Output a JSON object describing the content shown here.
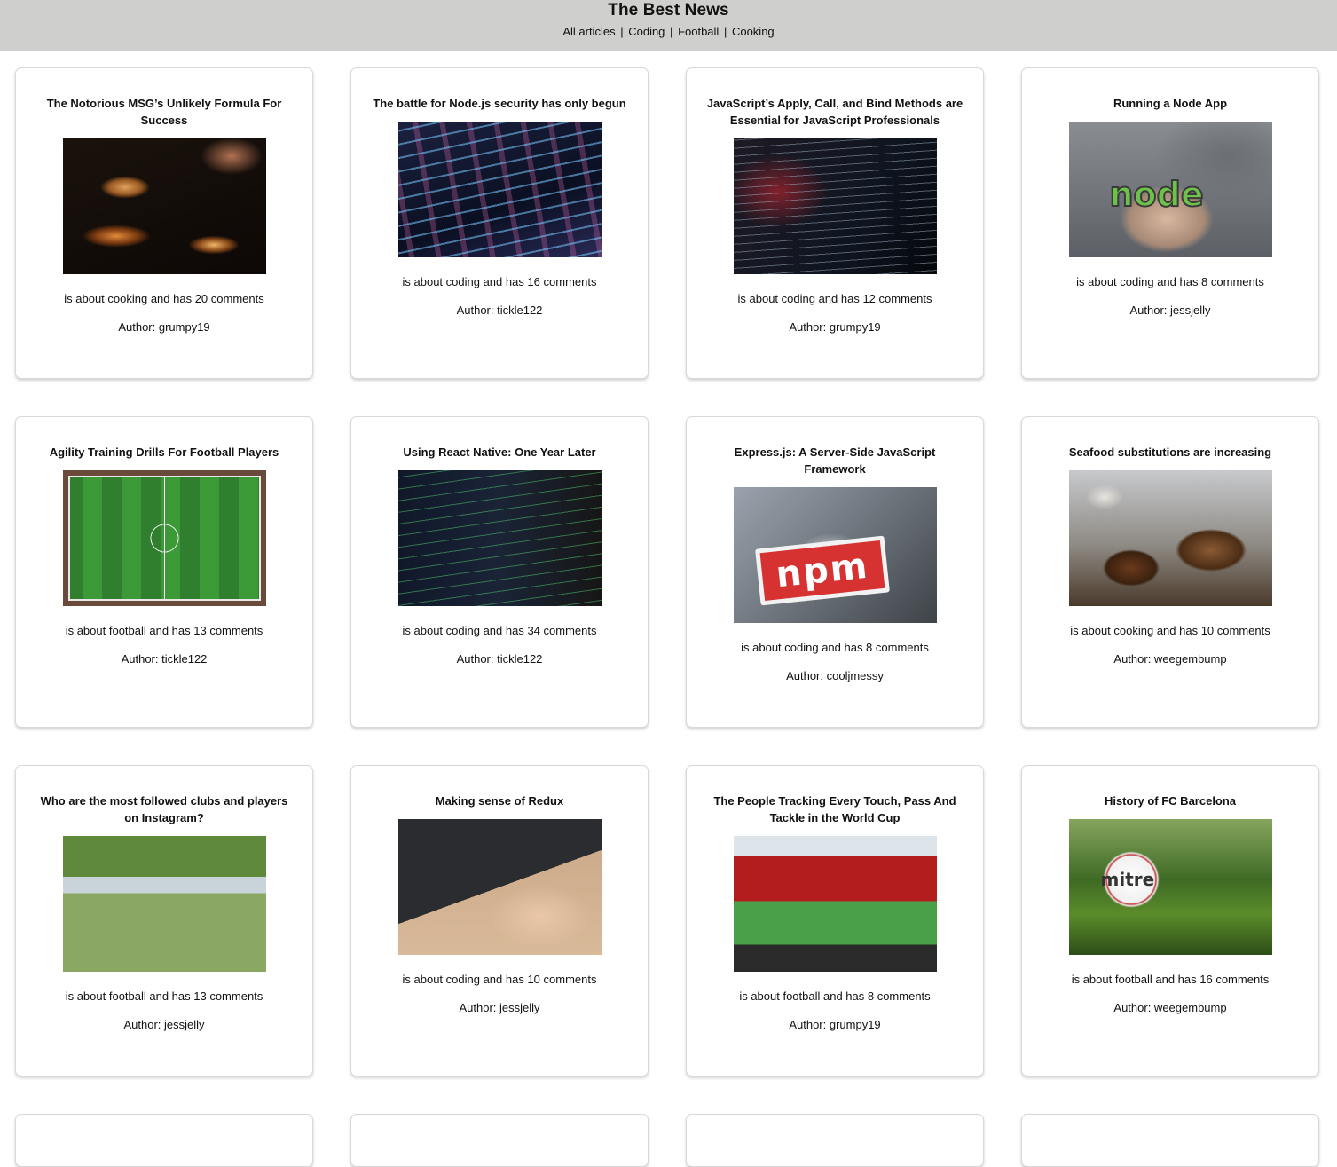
{
  "header": {
    "title": "The Best News",
    "nav": [
      {
        "label": "All articles"
      },
      {
        "label": "Coding"
      },
      {
        "label": "Football"
      },
      {
        "label": "Cooking"
      }
    ],
    "separator": "|"
  },
  "articles": [
    {
      "title": "The Notorious MSG’s Unlikely Formula For Success",
      "topic_line": "is about cooking and has 20 comments",
      "author_line": "Author: grumpy19",
      "image": "cooking-pot-image"
    },
    {
      "title": "The battle for Node.js security has only begun",
      "topic_line": "is about coding and has 16 comments",
      "author_line": "Author: tickle122",
      "image": "code-screen-image"
    },
    {
      "title": "JavaScript’s Apply, Call, and Bind Methods are Essential for JavaScript Professionals",
      "topic_line": "is about coding and has 12 comments",
      "author_line": "Author: grumpy19",
      "image": "code-screen-image"
    },
    {
      "title": "Running a Node App",
      "topic_line": "is about coding and has 8 comments",
      "author_line": "Author: jessjelly",
      "image": "node-sticker-image",
      "logo_text": "node"
    },
    {
      "title": "Agility Training Drills For Football Players",
      "topic_line": "is about football and has 13 comments",
      "author_line": "Author: tickle122",
      "image": "football-pitch-image"
    },
    {
      "title": "Using React Native: One Year Later",
      "topic_line": "is about coding and has 34 comments",
      "author_line": "Author: tickle122",
      "image": "code-screen-image"
    },
    {
      "title": "Express.js: A Server-Side JavaScript Framework",
      "topic_line": "is about coding and has 8 comments",
      "author_line": "Author: cooljmessy",
      "image": "npm-sticker-image",
      "logo_text": "npm"
    },
    {
      "title": "Seafood substitutions are increasing",
      "topic_line": "is about cooking and has 10 comments",
      "author_line": "Author: weegembump",
      "image": "seafood-plating-image"
    },
    {
      "title": "Who are the most followed clubs and players on Instagram?",
      "topic_line": "is about football and has 13 comments",
      "author_line": "Author: jessjelly",
      "image": "soccer-match-image"
    },
    {
      "title": "Making sense of Redux",
      "topic_line": "is about coding and has 10 comments",
      "author_line": "Author: jessjelly",
      "image": "laptop-coding-image"
    },
    {
      "title": "The People Tracking Every Touch, Pass And Tackle in the World Cup",
      "topic_line": "is about football and has 8 comments",
      "author_line": "Author: grumpy19",
      "image": "stadium-image"
    },
    {
      "title": "History of FC Barcelona",
      "topic_line": "is about football and has 16 comments",
      "author_line": "Author: weegembump",
      "image": "football-on-grass-image",
      "logo_text": "mitre"
    }
  ]
}
